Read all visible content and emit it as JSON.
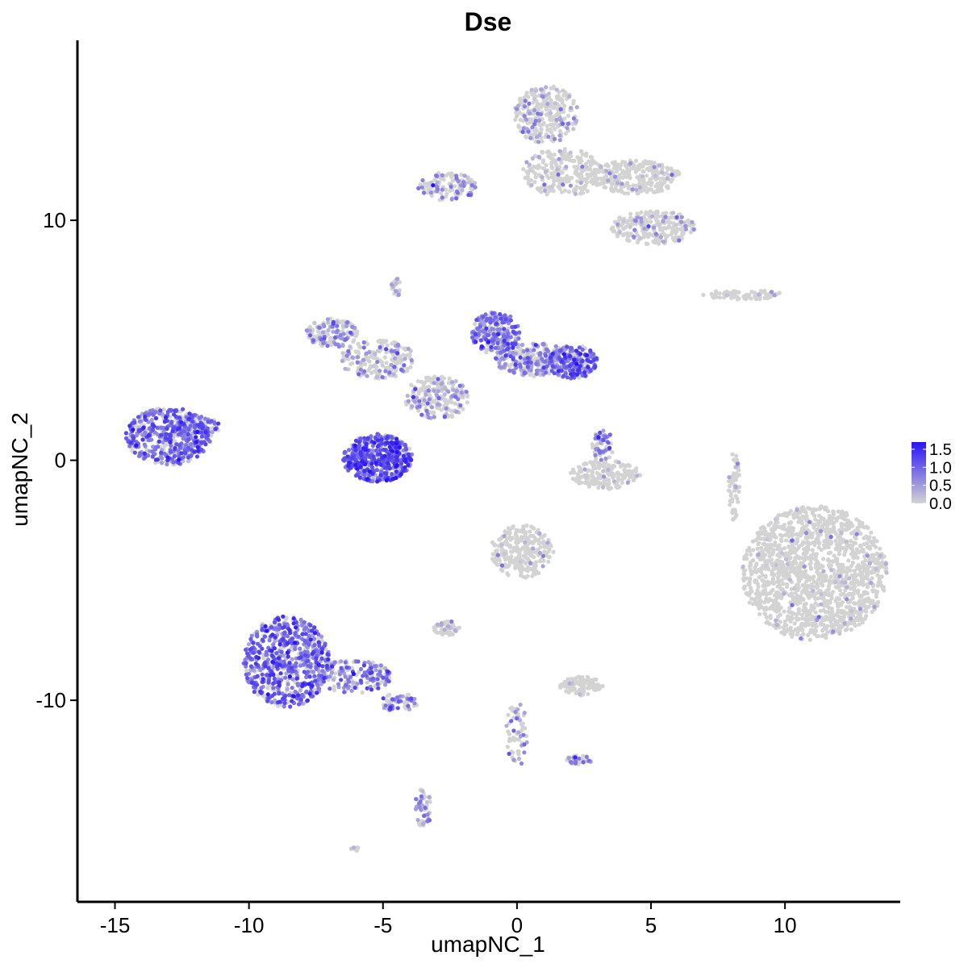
{
  "chart_data": {
    "type": "scatter",
    "title": "Dse",
    "xlabel": "umapNC_1",
    "ylabel": "umapNC_2",
    "xlim": [
      -16.4,
      14.3
    ],
    "ylim": [
      -18.4,
      17.5
    ],
    "xticks": [
      {
        "value": -15,
        "label": "-15"
      },
      {
        "value": -10,
        "label": "-10"
      },
      {
        "value": -5,
        "label": "-5"
      },
      {
        "value": 0,
        "label": "0"
      },
      {
        "value": 5,
        "label": "5"
      },
      {
        "value": 10,
        "label": "10"
      }
    ],
    "yticks": [
      {
        "value": 10,
        "label": "10"
      },
      {
        "value": 0,
        "label": "0"
      },
      {
        "value": -10,
        "label": "-10"
      }
    ],
    "grid": false,
    "color_scale": {
      "low_color": "#d3d3d3",
      "high_color": "#2a14f5",
      "min": 0,
      "max": 1.7,
      "ticks": [
        {
          "value": 1.5,
          "label": "1.5"
        },
        {
          "value": 1.0,
          "label": "1.0"
        },
        {
          "value": 0.5,
          "label": "0.5"
        },
        {
          "value": 0.0,
          "label": "0.0"
        }
      ],
      "legend_position": "right"
    },
    "clusters": [
      {
        "cx": -13.0,
        "cy": 1.0,
        "rx": 1.6,
        "ry": 1.2,
        "n": 520,
        "expr": 0.85
      },
      {
        "cx": -11.9,
        "cy": 1.4,
        "rx": 0.8,
        "ry": 0.5,
        "n": 90,
        "expr": 0.8
      },
      {
        "cx": -8.6,
        "cy": -8.4,
        "rx": 1.6,
        "ry": 1.9,
        "n": 700,
        "expr": 0.9
      },
      {
        "cx": -6.1,
        "cy": -9.0,
        "rx": 1.4,
        "ry": 0.7,
        "n": 170,
        "expr": 0.75
      },
      {
        "cx": -4.4,
        "cy": -10.1,
        "rx": 0.7,
        "ry": 0.4,
        "n": 60,
        "expr": 0.7
      },
      {
        "cx": -3.5,
        "cy": -14.5,
        "rx": 0.3,
        "ry": 0.9,
        "n": 50,
        "expr": 0.6
      },
      {
        "cx": -5.2,
        "cy": 0.1,
        "rx": 1.3,
        "ry": 1.0,
        "n": 480,
        "expr": 1.05
      },
      {
        "cx": -6.9,
        "cy": 5.3,
        "rx": 1.0,
        "ry": 0.6,
        "n": 150,
        "expr": 0.55
      },
      {
        "cx": -5.2,
        "cy": 4.2,
        "rx": 1.4,
        "ry": 0.8,
        "n": 200,
        "expr": 0.4
      },
      {
        "cx": -3.0,
        "cy": 2.6,
        "rx": 1.2,
        "ry": 0.9,
        "n": 220,
        "expr": 0.45
      },
      {
        "cx": -0.8,
        "cy": 5.3,
        "rx": 0.9,
        "ry": 0.9,
        "n": 260,
        "expr": 0.8
      },
      {
        "cx": 0.6,
        "cy": 4.2,
        "rx": 1.4,
        "ry": 0.7,
        "n": 260,
        "expr": 0.65
      },
      {
        "cx": 2.1,
        "cy": 4.1,
        "rx": 0.9,
        "ry": 0.7,
        "n": 220,
        "expr": 0.9
      },
      {
        "cx": -4.5,
        "cy": 7.2,
        "rx": 0.2,
        "ry": 0.4,
        "n": 25,
        "expr": 0.4
      },
      {
        "cx": 3.3,
        "cy": -0.6,
        "rx": 1.3,
        "ry": 0.6,
        "n": 180,
        "expr": 0.08
      },
      {
        "cx": 3.2,
        "cy": 0.6,
        "rx": 0.4,
        "ry": 0.7,
        "n": 60,
        "expr": 0.7
      },
      {
        "cx": 1.1,
        "cy": 14.4,
        "rx": 1.2,
        "ry": 1.2,
        "n": 280,
        "expr": 0.3
      },
      {
        "cx": 1.7,
        "cy": 12.0,
        "rx": 1.5,
        "ry": 1.0,
        "n": 240,
        "expr": 0.2
      },
      {
        "cx": 4.4,
        "cy": 11.8,
        "rx": 1.7,
        "ry": 0.7,
        "n": 300,
        "expr": 0.12
      },
      {
        "cx": 5.1,
        "cy": 9.7,
        "rx": 1.6,
        "ry": 0.7,
        "n": 240,
        "expr": 0.2
      },
      {
        "cx": -2.6,
        "cy": 11.4,
        "rx": 1.1,
        "ry": 0.6,
        "n": 120,
        "expr": 0.55
      },
      {
        "cx": 8.4,
        "cy": 6.9,
        "rx": 1.5,
        "ry": 0.2,
        "n": 80,
        "expr": 0.05
      },
      {
        "cx": 11.1,
        "cy": -4.7,
        "rx": 2.7,
        "ry": 2.8,
        "n": 1500,
        "expr": 0.03
      },
      {
        "cx": 0.2,
        "cy": -3.8,
        "rx": 1.2,
        "ry": 1.1,
        "n": 260,
        "expr": 0.1
      },
      {
        "cx": -2.6,
        "cy": -7.0,
        "rx": 0.5,
        "ry": 0.3,
        "n": 60,
        "expr": 0.3
      },
      {
        "cx": 2.4,
        "cy": -9.4,
        "rx": 0.8,
        "ry": 0.4,
        "n": 110,
        "expr": 0.08
      },
      {
        "cx": 2.3,
        "cy": -12.5,
        "rx": 0.5,
        "ry": 0.2,
        "n": 35,
        "expr": 0.7
      },
      {
        "cx": 0.0,
        "cy": -11.4,
        "rx": 0.4,
        "ry": 1.4,
        "n": 60,
        "expr": 0.45
      },
      {
        "cx": 8.1,
        "cy": -1.0,
        "rx": 0.2,
        "ry": 1.5,
        "n": 60,
        "expr": 0.05
      },
      {
        "cx": -6.0,
        "cy": -16.2,
        "rx": 0.2,
        "ry": 0.1,
        "n": 10,
        "expr": 0.05
      }
    ]
  }
}
